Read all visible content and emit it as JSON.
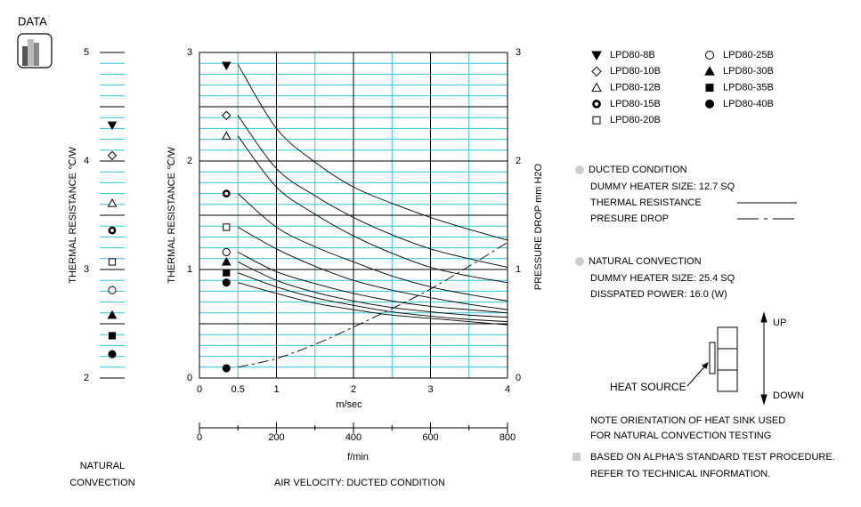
{
  "header": {
    "title": "DATA"
  },
  "chart_data": [
    {
      "type": "strip",
      "ylabel": "THERMAL  RESISTANCE  ℃/W",
      "caption": [
        "NATURAL",
        "CONVECTION"
      ],
      "ylim": [
        2,
        5
      ],
      "yticks": [
        2,
        3,
        4,
        5
      ],
      "grid": {
        "minor": 0.1,
        "major": 0.5
      },
      "values": [
        4.33,
        4.05,
        3.61,
        3.36,
        3.07,
        2.81,
        2.58,
        2.39,
        2.22
      ]
    },
    {
      "type": "line",
      "ylabel": "THERMAL  RESISTANCE  ℃/W",
      "y2label": "PRESSURE  DROP    mm H2O",
      "xlabel": "m/sec",
      "x2label": "f/min",
      "caption": "AIR VELOCITY:  DUCTED CONDITION",
      "xlim": [
        0,
        4
      ],
      "xticks": [
        0,
        0.5,
        1,
        2,
        3,
        4
      ],
      "ylim": [
        0,
        3
      ],
      "yticks": [
        0,
        1,
        2,
        3
      ],
      "y2lim": [
        0,
        3
      ],
      "y2ticks": [
        0,
        1,
        2,
        3
      ],
      "x2lim": [
        0,
        800
      ],
      "x2ticks": [
        0,
        200,
        400,
        600,
        800
      ],
      "x2minor": 100,
      "grid": {
        "x_minor": 0.5,
        "x_major": 1,
        "y_minor": 0.1,
        "y_major": 0.5
      },
      "grid_colors": {
        "minor": "#2cc6d6",
        "major": "#000000"
      },
      "point_x": 0.35,
      "x": [
        0.5,
        1,
        1.5,
        2,
        2.5,
        3,
        3.5,
        4
      ],
      "series": [
        {
          "name": "LPD80-8B",
          "marker": "triangle-down-filled",
          "point": 2.88,
          "values": [
            2.89,
            2.3,
            1.99,
            1.76,
            1.61,
            1.48,
            1.37,
            1.27
          ]
        },
        {
          "name": "LPD80-10B",
          "marker": "diamond",
          "point": 2.42,
          "values": [
            2.42,
            1.93,
            1.68,
            1.48,
            1.32,
            1.19,
            1.1,
            1.02
          ]
        },
        {
          "name": "LPD80-12B",
          "marker": "triangle",
          "point": 2.23,
          "values": [
            2.23,
            1.76,
            1.51,
            1.31,
            1.15,
            1.02,
            0.94,
            0.88
          ]
        },
        {
          "name": "LPD80-15B",
          "marker": "ring",
          "point": 1.7,
          "values": [
            1.7,
            1.39,
            1.21,
            1.07,
            0.94,
            0.84,
            0.77,
            0.71
          ]
        },
        {
          "name": "LPD80-20B",
          "marker": "square",
          "point": 1.39,
          "values": [
            1.39,
            1.19,
            1.03,
            0.9,
            0.81,
            0.74,
            0.68,
            0.63
          ]
        },
        {
          "name": "LPD80-25B",
          "marker": "circle",
          "point": 1.16,
          "values": [
            1.16,
            0.98,
            0.87,
            0.78,
            0.71,
            0.66,
            0.63,
            0.6
          ]
        },
        {
          "name": "LPD80-30B",
          "marker": "triangle-filled",
          "point": 1.07,
          "values": [
            1.07,
            0.9,
            0.79,
            0.71,
            0.65,
            0.61,
            0.58,
            0.56
          ]
        },
        {
          "name": "LPD80-35B",
          "marker": "square-filled",
          "point": 0.97,
          "values": [
            0.97,
            0.84,
            0.74,
            0.67,
            0.61,
            0.57,
            0.54,
            0.52
          ]
        },
        {
          "name": "LPD80-40B",
          "marker": "circle-filled",
          "point": 0.88,
          "values": [
            0.88,
            0.78,
            0.69,
            0.63,
            0.58,
            0.55,
            0.52,
            0.49
          ]
        },
        {
          "name": "PRESURE DROP",
          "axis": "y2",
          "dash": true,
          "marker": "circle-filled",
          "point": 0.09,
          "values": [
            0.1,
            0.18,
            0.31,
            0.47,
            0.64,
            0.82,
            1.03,
            1.25
          ]
        }
      ]
    }
  ],
  "notes": {
    "ducted": "DUCTED CONDITION",
    "ducted_heater": "DUMMY HEATER SIZE: 12.7 SQ",
    "thermal": "THERMAL RESISTANCE",
    "natural": "NATURAL CONVECTION",
    "natural_heater": "DUMMY HEATER SIZE: 25.4 SQ",
    "power": "DISSPATED POWER:  16.0 (W)",
    "up": "UP",
    "down": "DOWN",
    "heat_source": "HEAT SOURCE",
    "orientation": [
      "NOTE ORIENTATION OF HEAT SINK USED",
      "FOR NATURAL CONVECTION TESTING"
    ],
    "procedure": [
      "BASED ON ALPHA'S STANDARD TEST PROCEDURE.",
      "REFER TO TECHNICAL INFORMATION."
    ]
  }
}
